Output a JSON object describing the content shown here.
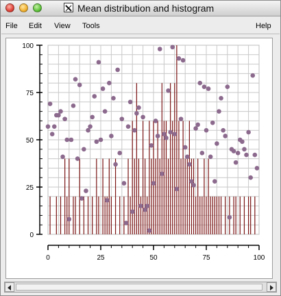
{
  "window": {
    "title": "Mean distribution and histogram",
    "x_icon_glyph": "X"
  },
  "menubar": {
    "items": [
      "File",
      "Edit",
      "View",
      "Tools"
    ],
    "help": "Help"
  },
  "colors": {
    "points": "#8c6a8e",
    "bars": "#7a1010",
    "grid": "#c8c8c8",
    "plot_border": "#bdbdbd"
  },
  "chart_data": {
    "type": "scatter",
    "title": "",
    "xlabel": "",
    "ylabel": "",
    "xlim": [
      0,
      100
    ],
    "ylim": [
      0,
      100
    ],
    "x_ticks": [
      0,
      25,
      50,
      75,
      100
    ],
    "y_ticks": [
      0,
      25,
      50,
      75,
      100
    ],
    "grid": true,
    "scatter": {
      "x": [
        0,
        1,
        2,
        3,
        4,
        5,
        6,
        7,
        8,
        9,
        10,
        11,
        12,
        13,
        14,
        15,
        16,
        17,
        18,
        19,
        20,
        21,
        22,
        23,
        24,
        25,
        26,
        27,
        28,
        29,
        30,
        31,
        32,
        33,
        34,
        35,
        36,
        37,
        38,
        39,
        40,
        41,
        42,
        43,
        44,
        45,
        46,
        47,
        48,
        49,
        50,
        51,
        52,
        53,
        54,
        55,
        56,
        57,
        58,
        59,
        60,
        61,
        62,
        63,
        64,
        65,
        66,
        67,
        68,
        69,
        70,
        71,
        72,
        73,
        74,
        75,
        76,
        77,
        78,
        79,
        80,
        81,
        82,
        83,
        84,
        85,
        86,
        87,
        88,
        89,
        90,
        91,
        92,
        93,
        94,
        95,
        96,
        97,
        98,
        99
      ],
      "y": [
        57,
        69,
        53,
        57,
        63,
        63,
        65,
        41,
        61,
        50,
        8,
        50,
        68,
        82,
        40,
        79,
        19,
        45,
        23,
        55,
        57,
        62,
        73,
        49,
        91,
        50,
        77,
        65,
        18,
        80,
        52,
        72,
        37,
        87,
        43,
        61,
        27,
        6,
        57,
        70,
        12,
        55,
        64,
        67,
        15,
        62,
        13,
        15,
        2,
        47,
        27,
        60,
        52,
        98,
        32,
        53,
        51,
        76,
        54,
        99,
        53,
        24,
        93,
        61,
        92,
        46,
        41,
        37,
        28,
        26,
        56,
        58,
        80,
        43,
        78,
        55,
        77,
        41,
        59,
        28,
        48,
        65,
        72,
        55,
        52,
        78,
        9,
        45,
        44,
        38,
        43,
        50,
        49,
        45,
        42,
        54,
        30,
        84,
        42,
        35
      ]
    },
    "histogram": {
      "x": [
        1,
        4,
        6,
        8,
        9,
        10,
        12,
        13,
        15,
        17,
        19,
        21,
        23,
        24,
        26,
        27,
        28,
        29,
        30,
        32,
        34,
        36,
        38,
        39,
        40,
        41,
        42,
        43,
        44,
        45,
        46,
        47,
        48,
        49,
        50,
        51,
        52,
        53,
        54,
        55,
        56,
        57,
        58,
        59,
        60,
        61,
        62,
        63,
        64,
        65,
        66,
        67,
        68,
        69,
        70,
        71,
        72,
        73,
        74,
        75,
        76,
        77,
        78,
        79,
        80,
        81,
        82,
        84,
        86,
        88,
        89,
        91,
        93,
        95,
        96,
        98
      ],
      "y": [
        20,
        20,
        20,
        40,
        20,
        40,
        20,
        20,
        40,
        20,
        20,
        20,
        40,
        20,
        40,
        20,
        20,
        40,
        20,
        40,
        20,
        20,
        40,
        20,
        60,
        40,
        80,
        40,
        20,
        60,
        40,
        20,
        60,
        40,
        60,
        40,
        60,
        40,
        80,
        60,
        60,
        40,
        80,
        60,
        80,
        100,
        60,
        40,
        60,
        40,
        40,
        60,
        40,
        40,
        20,
        40,
        20,
        20,
        40,
        20,
        40,
        20,
        20,
        20,
        20,
        20,
        20,
        20,
        20,
        20,
        20,
        20,
        20,
        20,
        20,
        20
      ]
    }
  }
}
